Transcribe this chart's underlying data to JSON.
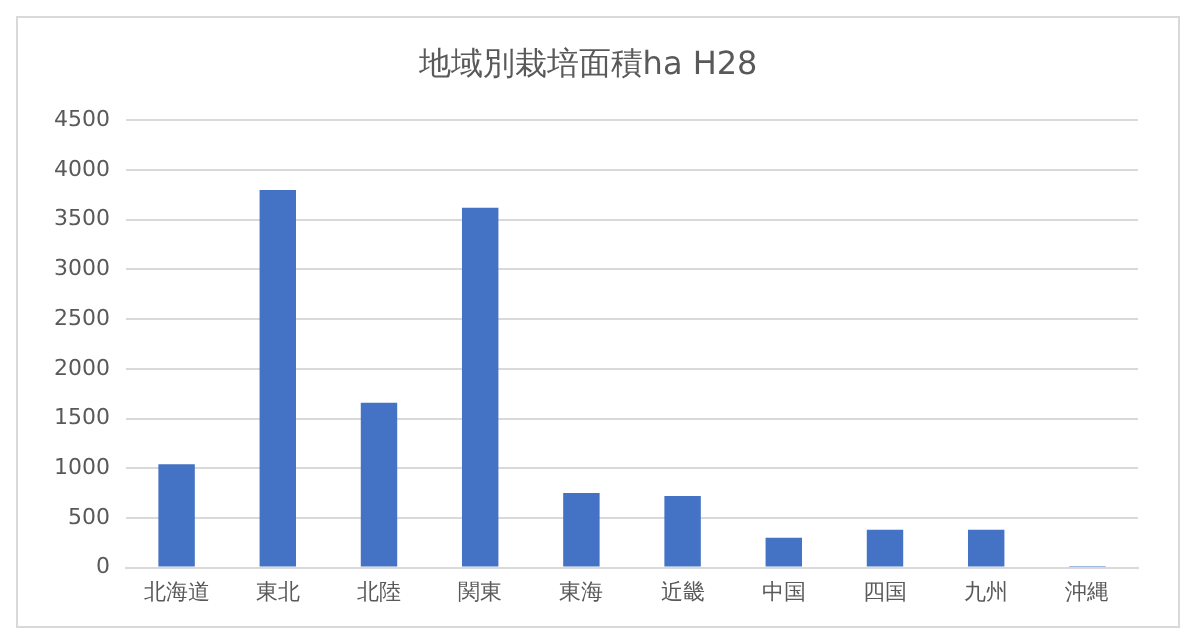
{
  "chart_data": {
    "type": "bar",
    "title": "地域別栽培面積ha H28",
    "categories": [
      "北海道",
      "東北",
      "北陸",
      "関東",
      "東海",
      "近畿",
      "中国",
      "四国",
      "九州",
      "沖縄"
    ],
    "values": [
      1040,
      3800,
      1660,
      3620,
      750,
      720,
      300,
      380,
      380,
      15
    ],
    "color": "#4472c4",
    "ylim": [
      0,
      4500
    ],
    "yticks": [
      0,
      500,
      1000,
      1500,
      2000,
      2500,
      3000,
      3500,
      4000,
      4500
    ],
    "grid": "y",
    "legend": false
  }
}
